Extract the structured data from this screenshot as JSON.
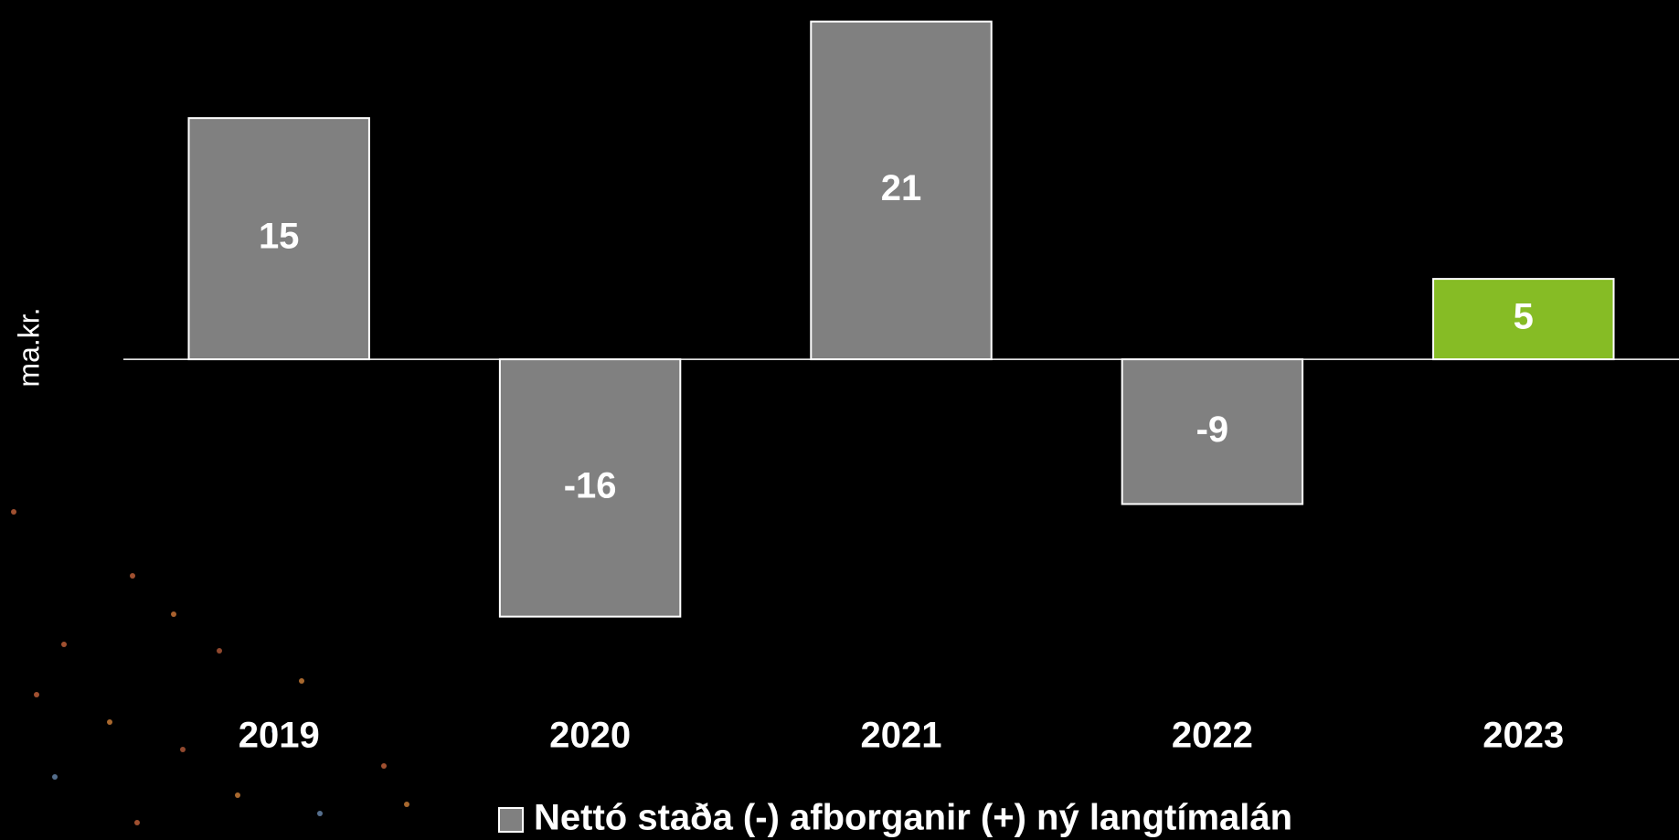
{
  "chart_data": {
    "type": "bar",
    "y_label": "ma.kr.",
    "categories": [
      "2019",
      "2020",
      "2021",
      "2022",
      "2023"
    ],
    "series": [
      {
        "name": "Nettó staða (-) afborganir (+) ný langtímalán",
        "color": "#808080",
        "values": [
          15,
          -16,
          21,
          -9,
          5
        ],
        "point_colors": [
          "#808080",
          "#808080",
          "#808080",
          "#808080",
          "#86bc25"
        ]
      }
    ],
    "ylim": [
      -20,
      22
    ]
  }
}
